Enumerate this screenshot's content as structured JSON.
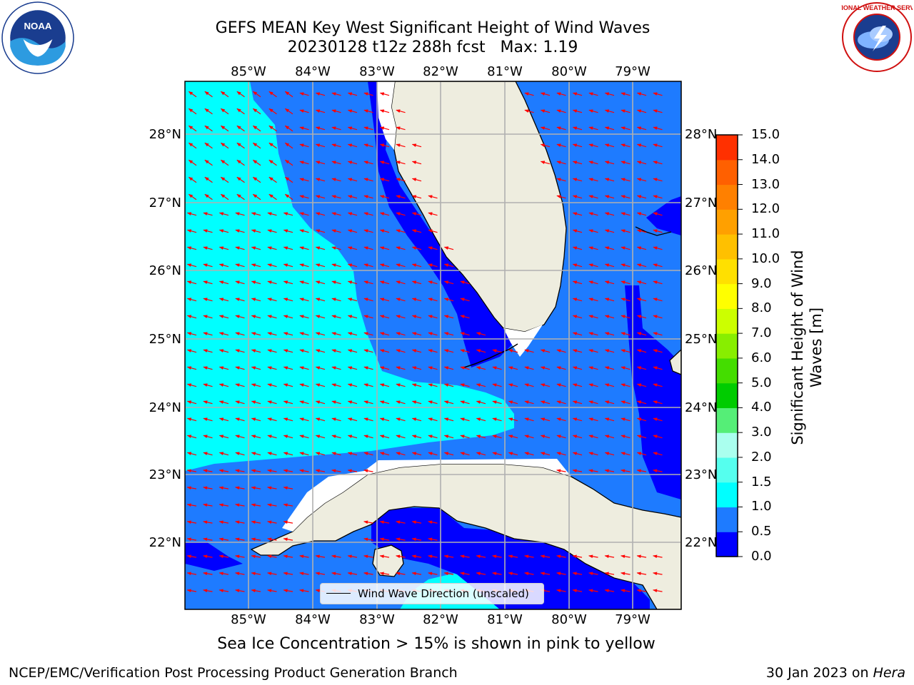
{
  "header": {
    "title_line1": "GEFS MEAN Key West Significant Height of Wind Waves",
    "title_line2": "20230128 t12z 288h fcst   Max: 1.19"
  },
  "logos": {
    "left": "noaa-logo",
    "right": "national-weather-service-logo",
    "left_text": "NOAA",
    "right_text": "NATIONAL WEATHER SERVICE"
  },
  "map": {
    "lon_labels": [
      "85°W",
      "84°W",
      "83°W",
      "82°W",
      "81°W",
      "80°W",
      "79°W"
    ],
    "lat_labels": [
      "28°N",
      "27°N",
      "26°N",
      "25°N",
      "24°N",
      "23°N",
      "22°N"
    ],
    "colors": {
      "ocean_deep_blue": "#0000ff",
      "ocean_mid_blue": "#1e7bff",
      "ocean_cyan": "#00ffff",
      "land": "#eeeddf",
      "arrows": "#ff0000",
      "grid": "#b0b0b0"
    }
  },
  "legend": {
    "label": "Wind Wave Direction (unscaled)"
  },
  "colorbar": {
    "title": "Significant Height of Wind Waves [m]",
    "ticks": [
      "15.0",
      "14.0",
      "13.0",
      "12.0",
      "11.0",
      "10.0",
      "9.0",
      "8.0",
      "7.0",
      "6.0",
      "5.0",
      "4.0",
      "3.0",
      "2.0",
      "1.5",
      "1.0",
      "0.5",
      "0.0"
    ],
    "colors": [
      "#0000ff",
      "#1e7bff",
      "#00ffff",
      "#55ffee",
      "#aaffee",
      "#55ee77",
      "#00cc00",
      "#44dd00",
      "#88ee00",
      "#ccff00",
      "#ffff00",
      "#ffe000",
      "#ffc000",
      "#ffa000",
      "#ff8000",
      "#ff6000",
      "#ff3000"
    ]
  },
  "footer": {
    "ice_note": "Sea Ice Concentration > 15% is shown in pink to yellow",
    "credit": "NCEP/EMC/Verification Post Processing Product Generation Branch",
    "date": "30 Jan 2023 on",
    "host": "Hera"
  }
}
